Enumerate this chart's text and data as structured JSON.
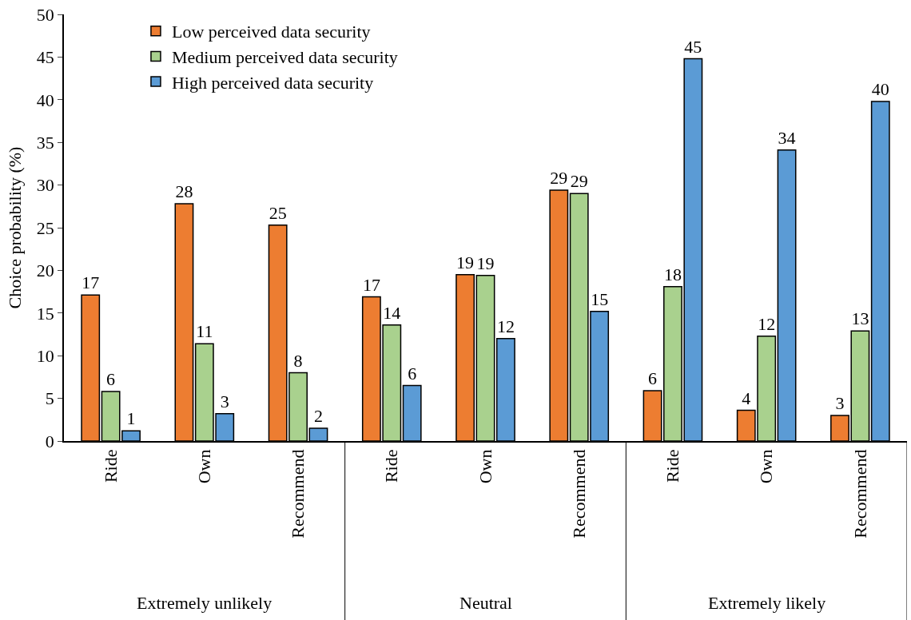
{
  "chart_data": {
    "type": "bar",
    "ylabel": "Choice probability (%)",
    "categories": [
      "Ride",
      "Own",
      "Recommend",
      "Ride",
      "Own",
      "Recommend",
      "Ride",
      "Own",
      "Recommend"
    ],
    "annotations": [
      "Extremely unlikely",
      "Neutral",
      "Extremely likely"
    ],
    "series": [
      {
        "name": "Low perceived data security",
        "color": "#ed7d31",
        "values": [
          17.1,
          27.8,
          25.3,
          16.9,
          19.5,
          29.4,
          5.9,
          3.6,
          3.0
        ],
        "value_labels": [
          "17",
          "28",
          "25",
          "17",
          "19",
          "29",
          "6",
          "4",
          "3"
        ]
      },
      {
        "name": "Medium perceived data security",
        "color": "#a9d18e",
        "values": [
          5.8,
          11.4,
          8.0,
          13.6,
          19.4,
          29.0,
          18.1,
          12.3,
          12.9
        ],
        "value_labels": [
          "6",
          "11",
          "8",
          "14",
          "19",
          "29",
          "18",
          "12",
          "13"
        ]
      },
      {
        "name": "High perceived data security",
        "color": "#5b9bd5",
        "values": [
          1.2,
          3.2,
          1.5,
          6.5,
          12.0,
          15.2,
          44.8,
          34.1,
          39.8
        ],
        "value_labels": [
          "1",
          "3",
          "2",
          "6",
          "12",
          "15",
          "45",
          "34",
          "40"
        ]
      }
    ],
    "ylim": [
      0,
      50
    ],
    "yticks": [
      0,
      5,
      10,
      15,
      20,
      25,
      30,
      35,
      40,
      45,
      50
    ],
    "grid": false,
    "legend": "top left"
  }
}
